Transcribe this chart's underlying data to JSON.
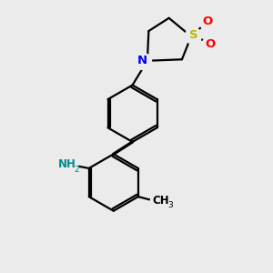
{
  "bg_color": "#ebebeb",
  "bond_color": "#000000",
  "atom_colors": {
    "N": "#0000ff",
    "S": "#b8b800",
    "O": "#ff0000",
    "NH2": "#008b8b",
    "C": "#000000"
  },
  "lw": 1.6
}
